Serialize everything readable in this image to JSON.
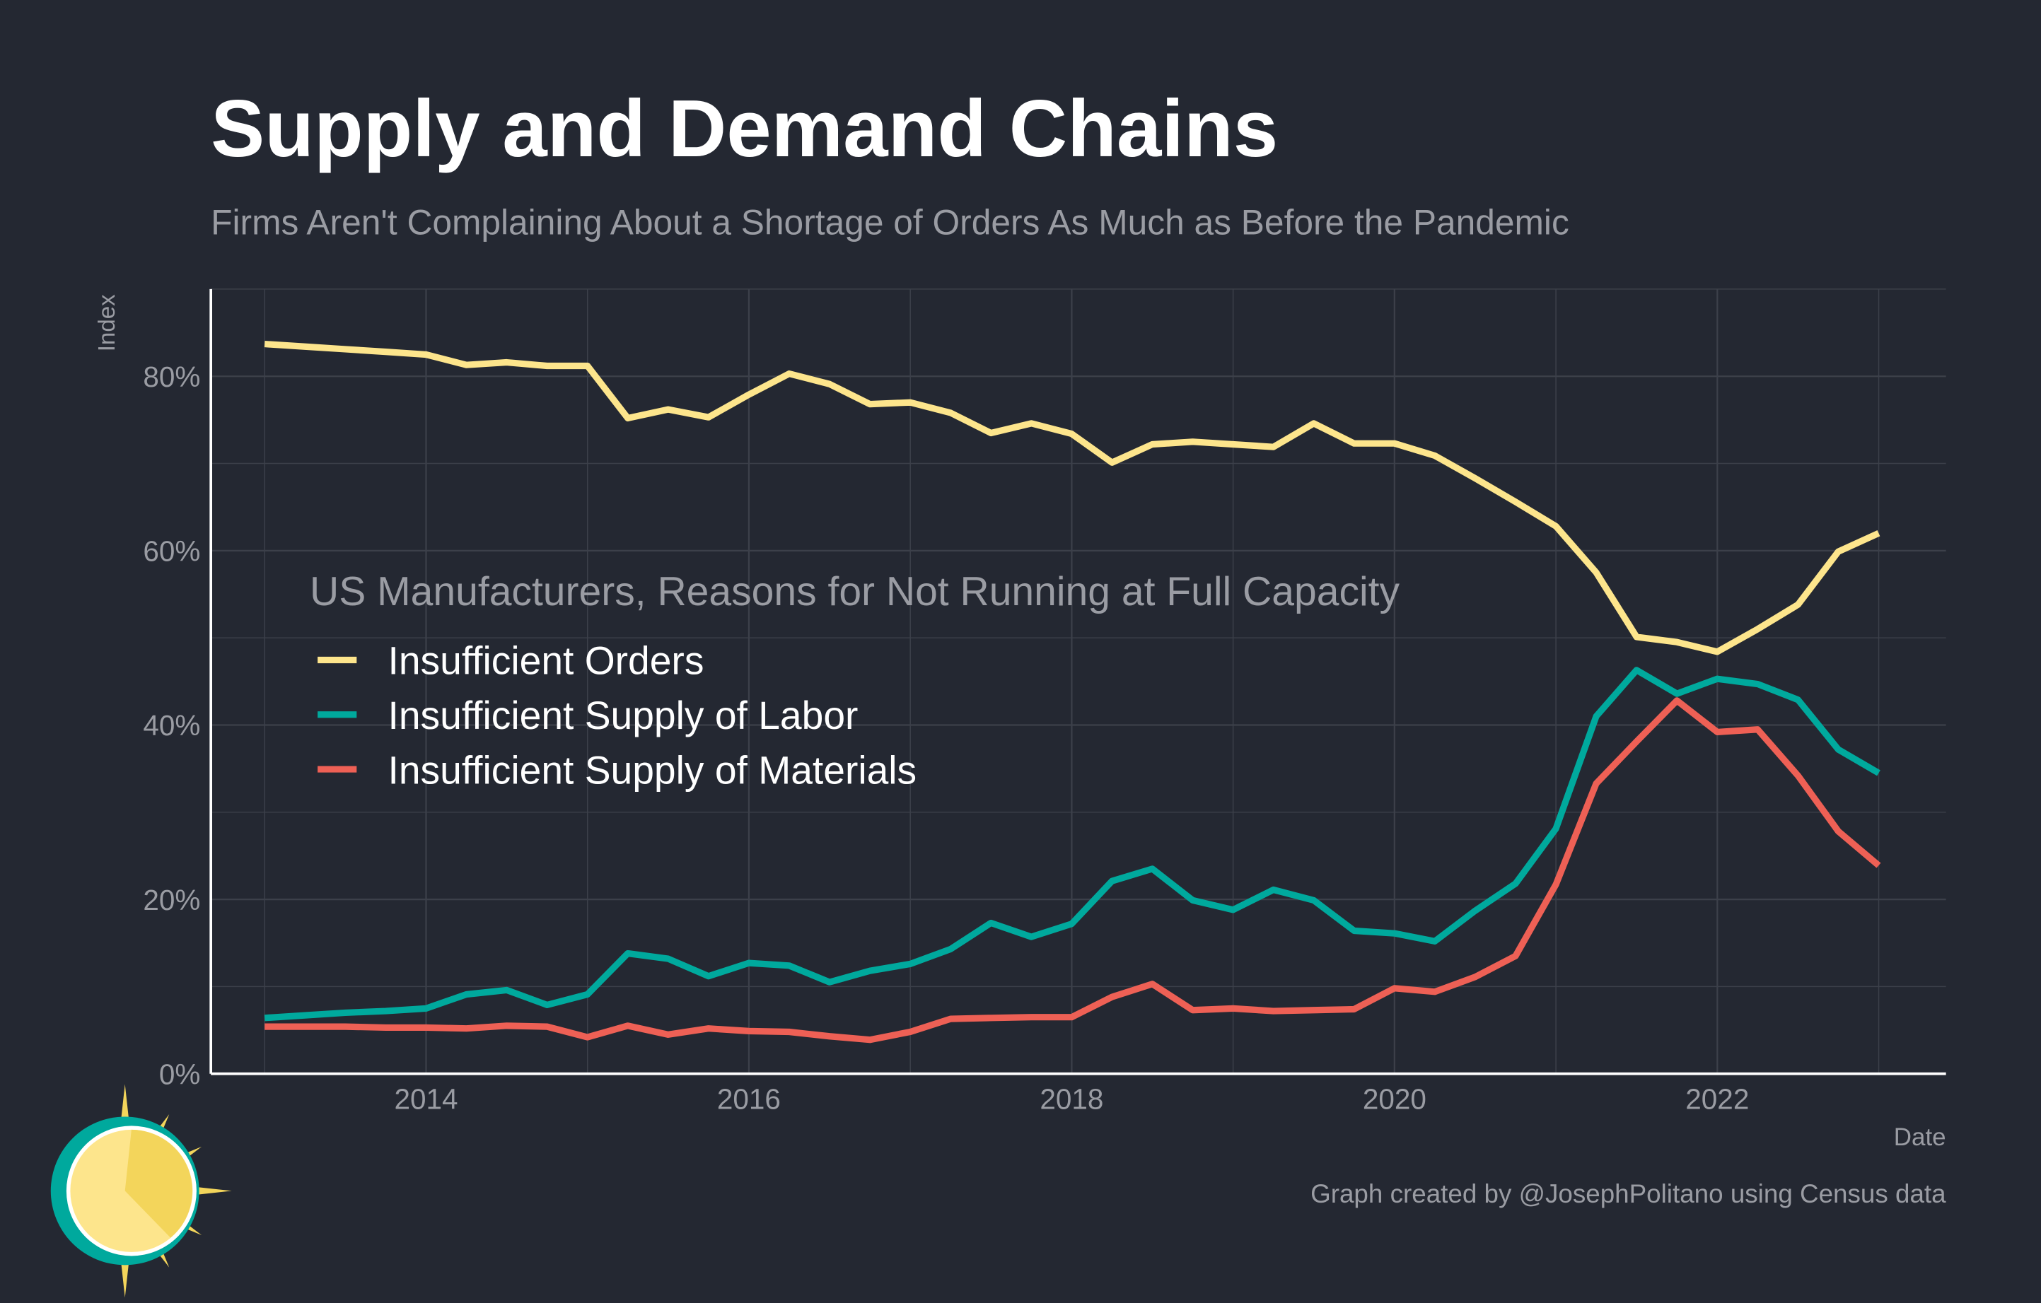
{
  "chart_data": {
    "type": "line",
    "title": "Supply and Demand Chains",
    "subtitle": "Firms Aren't Complaining About a Shortage of Orders As Much as Before the Pandemic",
    "xlabel": "Date",
    "ylabel": "Index",
    "ylim": [
      0,
      90
    ],
    "xlim": [
      "2012-09",
      "2023-06"
    ],
    "y_ticks": [
      "0%",
      "20%",
      "40%",
      "60%",
      "80%"
    ],
    "y_tick_values": [
      0,
      20,
      40,
      60,
      80
    ],
    "x_ticks": [
      "2014",
      "2016",
      "2018",
      "2020",
      "2022"
    ],
    "grid": true,
    "legend_title": "US Manufacturers, Reasons for Not Running at Full Capacity",
    "legend_position": "center-left",
    "caption": "Graph created by @JosephPolitano using Census data",
    "x": [
      "2013-01",
      "2013-04",
      "2013-07",
      "2013-10",
      "2014-01",
      "2014-04",
      "2014-07",
      "2014-10",
      "2015-01",
      "2015-04",
      "2015-07",
      "2015-10",
      "2016-01",
      "2016-04",
      "2016-07",
      "2016-10",
      "2017-01",
      "2017-04",
      "2017-07",
      "2017-10",
      "2018-01",
      "2018-04",
      "2018-07",
      "2018-10",
      "2019-01",
      "2019-04",
      "2019-07",
      "2019-10",
      "2020-01",
      "2020-04",
      "2020-07",
      "2020-10",
      "2021-01",
      "2021-04",
      "2021-07",
      "2021-10",
      "2022-01",
      "2022-04",
      "2022-07",
      "2022-10",
      "2023-01"
    ],
    "series": [
      {
        "name": "Insufficient Orders",
        "color": "#FDE58C",
        "values": [
          83.7,
          83.4,
          83.1,
          82.8,
          82.5,
          81.3,
          81.6,
          81.2,
          81.2,
          75.2,
          76.2,
          75.3,
          77.9,
          80.3,
          79.1,
          76.8,
          77.0,
          75.8,
          73.5,
          74.6,
          73.4,
          70.1,
          72.2,
          72.5,
          72.2,
          71.9,
          74.6,
          72.3,
          72.3,
          70.9,
          68.3,
          65.6,
          62.8,
          57.5,
          50.1,
          49.5,
          48.4,
          51.0,
          53.8,
          59.9,
          62.0
        ]
      },
      {
        "name": "Insufficient Supply of Labor",
        "color": "#00A99D",
        "values": [
          6.4,
          6.7,
          7.0,
          7.2,
          7.5,
          9.1,
          9.6,
          7.9,
          9.1,
          13.8,
          13.2,
          11.2,
          12.7,
          12.4,
          10.5,
          11.8,
          12.6,
          14.3,
          17.3,
          15.7,
          17.2,
          22.1,
          23.5,
          19.9,
          18.8,
          21.1,
          19.9,
          16.4,
          16.1,
          15.2,
          18.7,
          21.8,
          28.1,
          41.0,
          46.3,
          43.6,
          45.3,
          44.7,
          42.9,
          37.2,
          34.5
        ]
      },
      {
        "name": "Insufficient Supply of Materials",
        "color": "#EE6055",
        "values": [
          5.4,
          5.4,
          5.4,
          5.3,
          5.3,
          5.2,
          5.5,
          5.4,
          4.2,
          5.5,
          4.5,
          5.2,
          4.9,
          4.8,
          4.3,
          3.9,
          4.8,
          6.3,
          6.4,
          6.5,
          6.5,
          8.8,
          10.3,
          7.3,
          7.5,
          7.2,
          7.3,
          7.4,
          9.8,
          9.4,
          11.1,
          13.5,
          21.7,
          33.3,
          38.1,
          42.8,
          39.2,
          39.5,
          34.2,
          27.8,
          23.9
        ]
      }
    ]
  },
  "colors": {
    "background": "#242832",
    "grid": "#3C404A",
    "axis": "#FFFFFF",
    "muted_text": "#9A9CA3"
  }
}
